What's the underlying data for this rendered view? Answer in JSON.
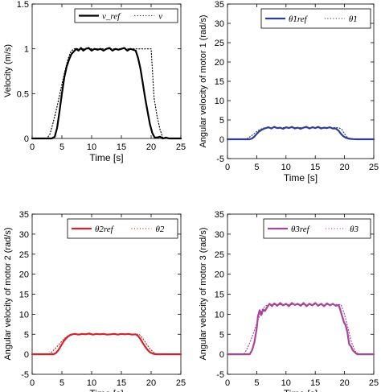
{
  "chart_data": [
    {
      "type": "line",
      "xlabel": "Time [s]",
      "ylabel": "Velocity  (m/s)",
      "xlim": [
        0,
        25
      ],
      "ylim": [
        0,
        1.5
      ],
      "xticks": [
        "0",
        "5",
        "10",
        "15",
        "20",
        "25"
      ],
      "yticks": [
        "0",
        "0.5",
        "1",
        "1.5"
      ],
      "grid": false,
      "legend_position": "top-right",
      "color": "#000000",
      "series": [
        {
          "name": "v_ref",
          "style": "solid",
          "x": [
            0,
            3.3,
            3.8,
            4.2,
            4.6,
            5.0,
            5.4,
            5.8,
            6.2,
            6.6,
            7.0,
            7.4,
            7.8,
            8.2,
            8.6,
            9.0,
            9.5,
            10.0,
            10.5,
            11.0,
            11.5,
            12.0,
            12.5,
            13.0,
            13.5,
            14.0,
            14.5,
            15.0,
            15.5,
            16.0,
            16.5,
            17.0,
            17.4,
            17.8,
            18.2,
            18.6,
            19.0,
            19.4,
            19.8,
            20.2,
            20.6,
            21.0,
            21.5,
            22.0,
            22.5,
            23.0,
            24.0,
            25.0
          ],
          "y": [
            0,
            0,
            0.02,
            0.12,
            0.3,
            0.5,
            0.68,
            0.8,
            0.88,
            0.94,
            0.97,
            1.0,
            0.98,
            1.01,
            0.98,
            1.0,
            1.01,
            0.98,
            1.0,
            0.99,
            1.0,
            0.98,
            1.0,
            1.01,
            0.98,
            1.0,
            0.99,
            1.0,
            1.01,
            0.98,
            1.0,
            0.99,
            0.98,
            0.9,
            0.78,
            0.62,
            0.45,
            0.3,
            0.16,
            0.06,
            0.01,
            0.01,
            0.02,
            0.0,
            0.01,
            0.0,
            0,
            0
          ]
        },
        {
          "name": "v",
          "style": "dotted",
          "x": [
            0,
            2.5,
            3.0,
            3.5,
            4.0,
            4.5,
            5.0,
            5.5,
            6.0,
            6.5,
            7.0,
            20.0,
            20.5,
            21.0,
            21.5,
            22.0,
            25.0
          ],
          "y": [
            0,
            0,
            0.05,
            0.17,
            0.3,
            0.45,
            0.6,
            0.75,
            0.88,
            0.97,
            1.0,
            1.0,
            0.45,
            0.25,
            0.1,
            0,
            0
          ]
        }
      ]
    },
    {
      "type": "line",
      "xlabel": "Time [s]",
      "ylabel": "Angular velocity of motor 1 (rad/s)",
      "xlim": [
        0,
        25
      ],
      "ylim": [
        -5,
        35
      ],
      "xticks": [
        "0",
        "5",
        "10",
        "15",
        "20",
        "25"
      ],
      "yticks": [
        "-5",
        "0",
        "5",
        "10",
        "15",
        "20",
        "25",
        "30",
        "35"
      ],
      "grid": false,
      "legend_position": "top-right",
      "color": "#2c3f95",
      "series": [
        {
          "name": "θ̇1ref",
          "style": "solid",
          "x": [
            0,
            3.8,
            4.2,
            4.6,
            5.0,
            5.4,
            5.8,
            6.2,
            6.6,
            7.0,
            7.5,
            8.0,
            8.5,
            9.0,
            9.5,
            10.0,
            10.5,
            11.0,
            11.5,
            12.0,
            12.5,
            13.0,
            13.5,
            14.0,
            14.5,
            15.0,
            15.5,
            16.0,
            16.5,
            17.0,
            17.5,
            18.0,
            18.5,
            19.0,
            19.4,
            19.8,
            20.2,
            20.6,
            21.0,
            21.5,
            22.0,
            25.0
          ],
          "y": [
            0,
            0,
            0.2,
            0.7,
            1.4,
            2.0,
            2.4,
            2.7,
            2.9,
            3.1,
            2.8,
            3.2,
            2.9,
            3.0,
            2.7,
            3.1,
            2.9,
            3.2,
            2.8,
            3.0,
            2.7,
            3.0,
            3.2,
            2.8,
            3.1,
            2.9,
            3.2,
            2.8,
            3.0,
            2.9,
            3.1,
            2.8,
            2.8,
            2.2,
            1.4,
            0.8,
            0.4,
            0.2,
            0.1,
            0.05,
            0,
            0
          ]
        },
        {
          "name": "θ̇1",
          "style": "dotted",
          "x": [
            0,
            3.0,
            3.5,
            4.0,
            4.5,
            5.0,
            5.5,
            6.0,
            6.5,
            7.0,
            19.0,
            19.5,
            20.0,
            20.5,
            21.0,
            22.0,
            25.0
          ],
          "y": [
            0,
            0,
            0.3,
            0.8,
            1.4,
            2.0,
            2.5,
            2.8,
            3.0,
            3.0,
            3.0,
            2.6,
            1.4,
            0.5,
            0.1,
            0,
            0
          ]
        }
      ]
    },
    {
      "type": "line",
      "xlabel": "Time [s]",
      "ylabel": "Angular velocity of motor 2 (rad/s)",
      "xlim": [
        0,
        25
      ],
      "ylim": [
        -5,
        35
      ],
      "xticks": [
        "0",
        "5",
        "10",
        "15",
        "20",
        "25"
      ],
      "yticks": [
        "-5",
        "0",
        "5",
        "10",
        "15",
        "20",
        "25",
        "30",
        "35"
      ],
      "grid": false,
      "legend_position": "top-right",
      "color": "#d8222a",
      "series": [
        {
          "name": "θ̇2ref",
          "style": "solid",
          "x": [
            0,
            3.6,
            4.0,
            4.4,
            4.8,
            5.2,
            5.6,
            6.0,
            6.4,
            6.8,
            7.2,
            7.8,
            8.4,
            9.0,
            9.6,
            10.2,
            10.8,
            11.4,
            12.0,
            12.6,
            13.2,
            13.8,
            14.4,
            15.0,
            15.6,
            16.2,
            16.8,
            17.4,
            17.8,
            18.2,
            18.6,
            19.0,
            19.4,
            19.8,
            20.2,
            20.6,
            21.0,
            25.0
          ],
          "y": [
            0,
            0,
            0.3,
            1.0,
            2.0,
            3.0,
            3.8,
            4.4,
            4.8,
            5.0,
            5.1,
            4.9,
            5.1,
            5.0,
            5.2,
            4.9,
            5.1,
            5.0,
            5.1,
            4.9,
            5.0,
            5.1,
            4.9,
            5.1,
            5.0,
            5.1,
            4.9,
            5.0,
            4.6,
            3.8,
            2.8,
            1.9,
            1.1,
            0.5,
            0.2,
            0.05,
            0,
            0
          ]
        },
        {
          "name": "θ̇2",
          "style": "dotted",
          "x": [
            0,
            2.8,
            3.4,
            4.0,
            4.6,
            5.2,
            5.8,
            6.4,
            7.0,
            18.0,
            18.6,
            19.2,
            19.8,
            20.4,
            21.0,
            25.0
          ],
          "y": [
            0,
            0,
            0.7,
            1.6,
            2.6,
            3.6,
            4.4,
            4.9,
            5.0,
            5.0,
            4.0,
            2.6,
            1.4,
            0.5,
            0,
            0
          ]
        }
      ]
    },
    {
      "type": "line",
      "xlabel": "Time [s]",
      "ylabel": "Angular velocity of motor 3 (rad/s)",
      "xlim": [
        0,
        25
      ],
      "ylim": [
        -5,
        35
      ],
      "xticks": [
        "0",
        "5",
        "10",
        "15",
        "20",
        "25"
      ],
      "yticks": [
        "-5",
        "0",
        "5",
        "10",
        "15",
        "20",
        "25",
        "30",
        "35"
      ],
      "grid": false,
      "legend_position": "top-right",
      "color": "#a9449a",
      "series": [
        {
          "name": "θ̇3ref",
          "style": "solid",
          "x": [
            0,
            3.8,
            4.2,
            4.6,
            5.0,
            5.2,
            5.5,
            5.8,
            6.1,
            6.4,
            6.8,
            7.2,
            7.6,
            8.0,
            8.5,
            9.0,
            9.5,
            10.0,
            10.5,
            11.0,
            11.5,
            12.0,
            12.5,
            13.0,
            13.5,
            14.0,
            14.5,
            15.0,
            15.5,
            16.0,
            16.5,
            17.0,
            17.5,
            18.0,
            18.5,
            19.0,
            19.3,
            19.6,
            19.9,
            20.2,
            20.5,
            20.8,
            21.1,
            21.4,
            21.8,
            22.2,
            25.0
          ],
          "y": [
            0,
            0,
            1.0,
            3.0,
            6.5,
            9.5,
            11.0,
            9.8,
            11.2,
            10.8,
            11.8,
            12.6,
            12.0,
            12.7,
            12.1,
            12.8,
            12.2,
            12.6,
            12.0,
            12.8,
            12.3,
            12.6,
            12.1,
            12.8,
            12.0,
            12.6,
            12.2,
            12.8,
            12.1,
            12.6,
            12.0,
            12.7,
            12.2,
            12.6,
            12.1,
            12.3,
            11.0,
            9.5,
            8.0,
            7.2,
            5.5,
            2.5,
            2.0,
            1.0,
            0.4,
            0.0,
            0
          ]
        },
        {
          "name": "θ̇3",
          "style": "dotted",
          "x": [
            0,
            2.8,
            3.4,
            4.0,
            4.6,
            5.2,
            5.8,
            6.4,
            7.0,
            19.4,
            20.0,
            20.6,
            21.2,
            21.8,
            22.4,
            25.0
          ],
          "y": [
            0,
            0,
            1.5,
            3.5,
            6.0,
            8.5,
            10.8,
            12.0,
            12.4,
            12.4,
            10.0,
            6.5,
            3.0,
            0.8,
            0,
            0
          ]
        }
      ]
    }
  ]
}
